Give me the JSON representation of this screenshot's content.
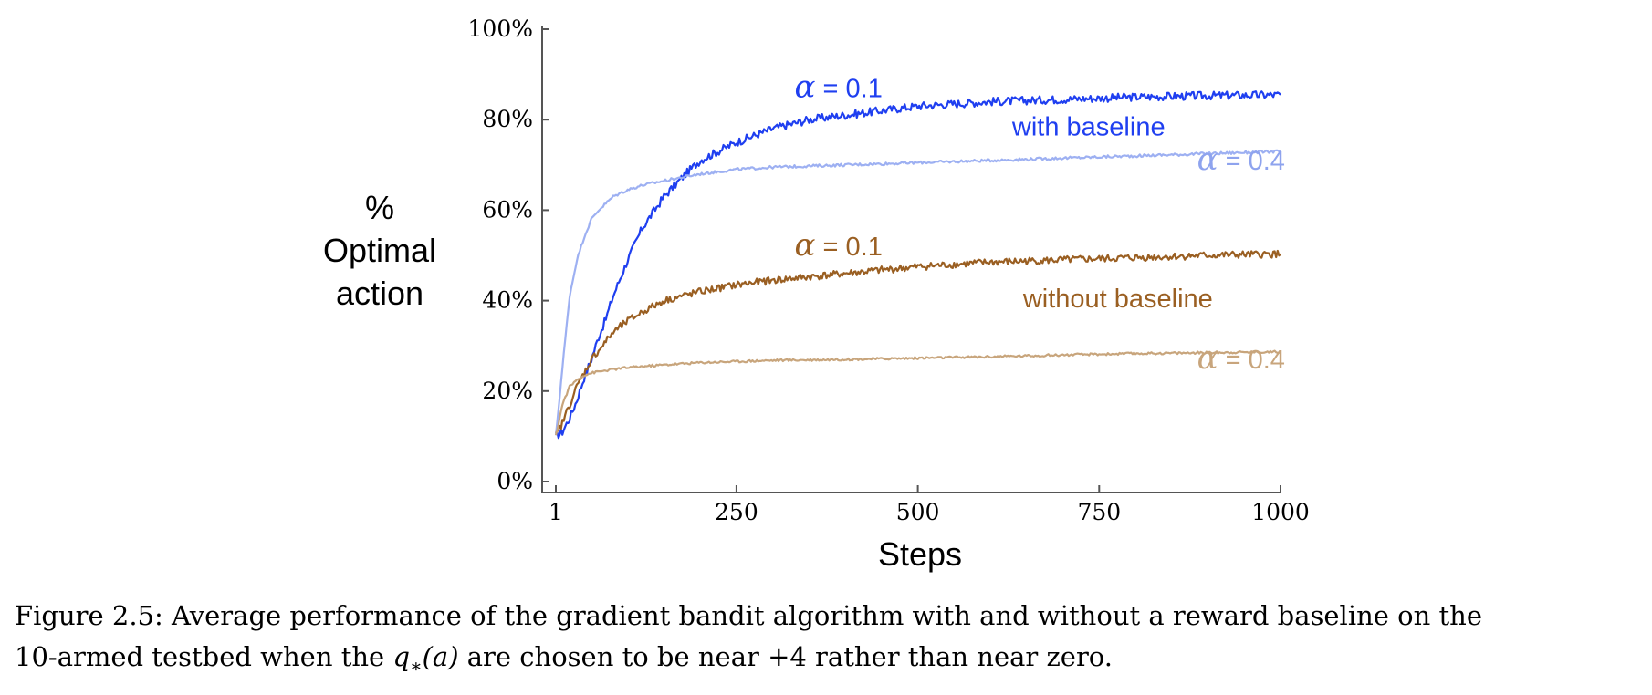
{
  "chart_data": {
    "type": "line",
    "title": "",
    "xlabel": "Steps",
    "ylabel": [
      "%",
      "Optimal",
      "action"
    ],
    "xlim": [
      1,
      1000
    ],
    "ylim": [
      0,
      100
    ],
    "xticks": [
      1,
      250,
      500,
      750,
      1000
    ],
    "xtick_labels": [
      "1",
      "250",
      "500",
      "750",
      "1000"
    ],
    "yticks": [
      0,
      20,
      40,
      60,
      80,
      100
    ],
    "ytick_labels": [
      "0%",
      "20%",
      "40%",
      "60%",
      "80%",
      "100%"
    ],
    "grid": false,
    "series": [
      {
        "name": "with baseline, α = 0.1",
        "color": "#1f3ff0",
        "x": [
          1,
          10,
          20,
          30,
          40,
          50,
          60,
          70,
          80,
          100,
          120,
          150,
          180,
          200,
          250,
          300,
          350,
          400,
          500,
          600,
          700,
          800,
          900,
          1000
        ],
        "y": [
          10,
          11,
          14,
          18,
          23,
          27,
          32,
          36,
          41,
          49,
          56,
          63,
          68,
          71,
          75,
          78,
          80,
          81,
          83,
          84,
          84.5,
          85,
          85.3,
          85.5
        ]
      },
      {
        "name": "with baseline, α = 0.4",
        "color": "#9db0f2",
        "x": [
          1,
          10,
          20,
          30,
          40,
          50,
          60,
          70,
          80,
          100,
          120,
          150,
          200,
          250,
          300,
          400,
          500,
          600,
          700,
          800,
          900,
          1000
        ],
        "y": [
          10,
          25,
          41,
          49,
          54,
          58,
          60,
          61.5,
          63,
          64.5,
          65.5,
          66.5,
          68,
          69,
          69.5,
          70,
          70.5,
          71,
          71.5,
          72,
          72.5,
          73
        ]
      },
      {
        "name": "without baseline, α = 0.1",
        "color": "#9a5f22",
        "x": [
          1,
          10,
          20,
          30,
          40,
          50,
          60,
          70,
          80,
          100,
          120,
          150,
          200,
          250,
          300,
          400,
          500,
          600,
          700,
          800,
          900,
          1000
        ],
        "y": [
          10,
          13,
          17,
          21,
          24,
          27,
          29,
          31,
          33,
          35.5,
          37.5,
          40,
          42,
          43.5,
          44.5,
          46,
          47.5,
          48.5,
          49,
          49.5,
          50,
          50.3
        ]
      },
      {
        "name": "without baseline, α = 0.4",
        "color": "#c8a57c",
        "x": [
          1,
          10,
          20,
          30,
          40,
          50,
          60,
          80,
          100,
          150,
          200,
          300,
          400,
          500,
          600,
          700,
          800,
          900,
          1000
        ],
        "y": [
          10,
          17,
          21,
          22.5,
          23.5,
          24,
          24.3,
          24.8,
          25.2,
          25.8,
          26.3,
          26.8,
          27,
          27.3,
          27.6,
          28,
          28.3,
          28.5,
          28.7
        ]
      }
    ],
    "annotations": [
      {
        "id": "alpha-01-blue",
        "text": "α = 0.1",
        "x": 330,
        "y": 85,
        "color": "#1f3ff0",
        "kind": "alpha"
      },
      {
        "id": "with-baseline",
        "text": "with baseline",
        "x": 630,
        "y": 76.5,
        "color": "#1f3ff0",
        "kind": "label"
      },
      {
        "id": "alpha-04-blue",
        "text": "α = 0.4",
        "x": 885,
        "y": 69,
        "color": "#8ea3ee",
        "kind": "alpha"
      },
      {
        "id": "alpha-01-brown",
        "text": "α = 0.1",
        "x": 330,
        "y": 50,
        "color": "#9a5f22",
        "kind": "alpha"
      },
      {
        "id": "without-baseline",
        "text": "without baseline",
        "x": 645,
        "y": 38.5,
        "color": "#9a5f22",
        "kind": "label"
      },
      {
        "id": "alpha-04-brown",
        "text": "α = 0.4",
        "x": 885,
        "y": 25,
        "color": "#c8a57c",
        "kind": "alpha"
      }
    ]
  },
  "caption": {
    "line1": "Figure 2.5:  Average performance of the gradient bandit algorithm with and without a reward baseline on the",
    "line2_before": "10-armed testbed when the ",
    "line2_math": "q",
    "line2_sub": "∗",
    "line2_paren": "(a)",
    "line2_after": " are chosen to be near +4 rather than near zero."
  }
}
